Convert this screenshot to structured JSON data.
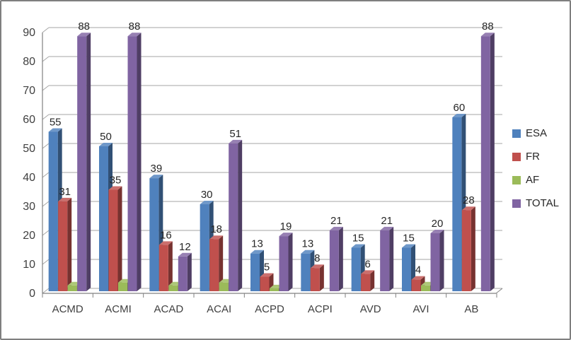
{
  "chart_data": {
    "type": "bar",
    "style": "3d-clustered-column",
    "title": "",
    "xlabel": "",
    "ylabel": "",
    "categories": [
      "ACMD",
      "ACMI",
      "ACAD",
      "ACAI",
      "ACPD",
      "ACPI",
      "AVD",
      "AVI",
      "AB"
    ],
    "series": [
      {
        "name": "ESA",
        "color": "#4F81BD",
        "values": [
          55,
          50,
          39,
          30,
          13,
          13,
          15,
          15,
          60
        ],
        "labels_shown": true
      },
      {
        "name": "FR",
        "color": "#C0504D",
        "values": [
          31,
          35,
          16,
          18,
          5,
          8,
          6,
          4,
          28
        ],
        "labels_shown": true
      },
      {
        "name": "AF",
        "color": "#9BBB59",
        "values": [
          2,
          3,
          2,
          3,
          1,
          0,
          0,
          2,
          0
        ],
        "labels_shown": false
      },
      {
        "name": "TOTAL",
        "color": "#8064A2",
        "values": [
          88,
          88,
          12,
          51,
          19,
          21,
          21,
          20,
          88
        ],
        "labels_shown": true
      }
    ],
    "data_labels": {
      "ESA": [
        "55",
        "50",
        "39",
        "30",
        "13",
        "13",
        "15",
        "15",
        "60"
      ],
      "FR": [
        "31",
        "35",
        "16",
        "18",
        "5",
        "8",
        "6",
        "4",
        "28"
      ],
      "TOTAL": [
        "88",
        "88",
        "12",
        "51",
        "19",
        "21",
        "21",
        "20",
        "88"
      ]
    },
    "y_axis": {
      "min": 0,
      "max": 90,
      "step": 10,
      "tick_labels": [
        "0",
        "10",
        "20",
        "30",
        "40",
        "50",
        "60",
        "70",
        "80",
        "90"
      ]
    },
    "legend": {
      "position": "right",
      "entries": [
        "ESA",
        "FR",
        "AF",
        "TOTAL"
      ]
    },
    "grid": true,
    "colors": {
      "gridline": "#A6A6A6",
      "axis": "#808080",
      "text": "#404040",
      "label_text": "#262626"
    }
  }
}
